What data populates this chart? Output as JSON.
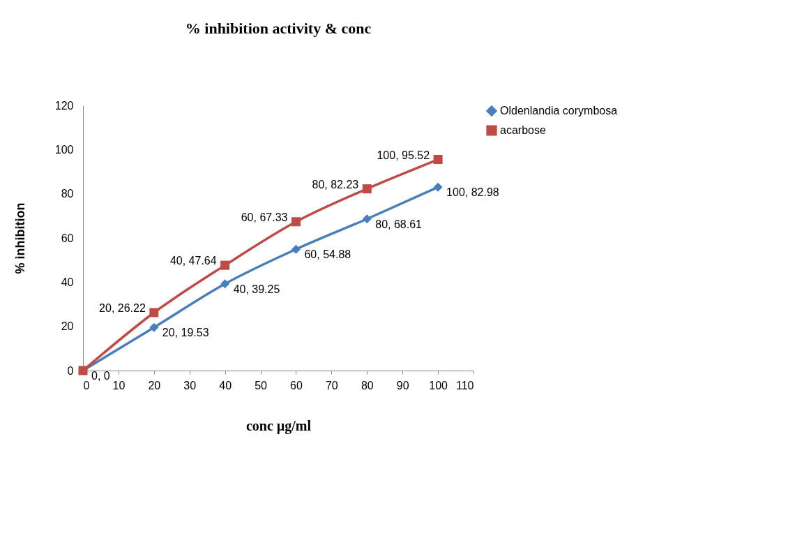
{
  "chart_data": {
    "type": "line",
    "title": "% inhibition activity & conc",
    "xlabel": "conc µg/ml",
    "ylabel": "% inhibition",
    "x": [
      0,
      20,
      40,
      60,
      80,
      100
    ],
    "series": [
      {
        "name": "Oldenlandia corymbosa",
        "color": "#4a7ebb",
        "marker": "diamond",
        "values": [
          0,
          19.53,
          39.25,
          54.88,
          68.61,
          82.98
        ],
        "value_labels": [
          "0, 0",
          "20, 19.53",
          "40, 39.25",
          "60, 54.88",
          "80, 68.61",
          "100, 82.98"
        ]
      },
      {
        "name": "acarbose",
        "color": "#be4b48",
        "marker": "square",
        "values": [
          0,
          26.22,
          47.64,
          67.33,
          82.23,
          95.52
        ],
        "value_labels": [
          null,
          "20, 26.22",
          "40, 47.64",
          "60, 67.33",
          "80, 82.23",
          "100, 95.52"
        ]
      }
    ],
    "xlim": [
      0,
      110
    ],
    "xticks": [
      0,
      10,
      20,
      30,
      40,
      50,
      60,
      70,
      80,
      90,
      100,
      110
    ],
    "ylim": [
      0,
      120
    ],
    "yticks": [
      0,
      20,
      40,
      60,
      80,
      100,
      120
    ],
    "grid": false,
    "legend": "right"
  }
}
